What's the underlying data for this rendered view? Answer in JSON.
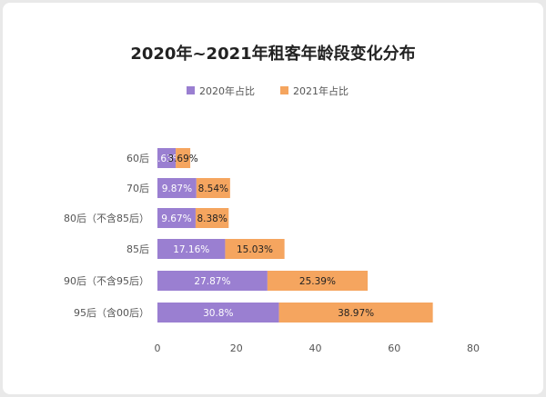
{
  "chart_data": {
    "type": "bar",
    "orientation": "horizontal",
    "stacked": true,
    "title": "2020年~2021年租客年龄段变化分布",
    "categories": [
      "60后",
      "70后",
      "80后（不含85后）",
      "85后",
      "90后（不含95后）",
      "95后（含00后）"
    ],
    "series": [
      {
        "name": "2020年占比",
        "color": "#9a7fd1",
        "values": [
          4.63,
          9.87,
          9.67,
          17.16,
          27.87,
          30.8
        ],
        "labels": [
          "4.63%",
          "9.87%",
          "9.67%",
          "17.16%",
          "27.87%",
          "30.8%"
        ],
        "label_color": "#ffffff"
      },
      {
        "name": "2021年占比",
        "color": "#f5a55f",
        "values": [
          3.69,
          8.54,
          8.38,
          15.03,
          25.39,
          38.97
        ],
        "labels": [
          "3.69%",
          "8.54%",
          "8.38%",
          "15.03%",
          "25.39%",
          "38.97%"
        ],
        "label_color": "#222222"
      }
    ],
    "xlim": [
      0,
      80
    ],
    "xticks": [
      "0",
      "20",
      "40",
      "60",
      "80"
    ],
    "legend_position": "top-center",
    "grid": false
  }
}
